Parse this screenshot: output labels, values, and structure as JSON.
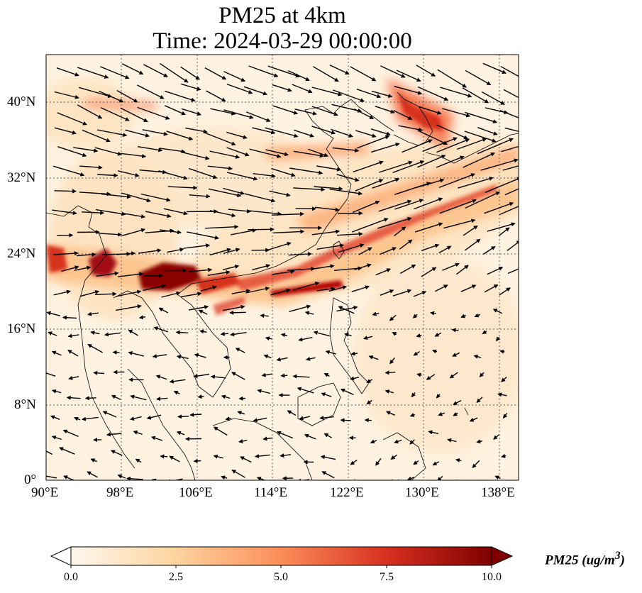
{
  "title": {
    "line1": "PM25 at 4km",
    "line2": "Time: 2024-03-29 00:00:00"
  },
  "map": {
    "lon_range": [
      90,
      140.2
    ],
    "lat_range": [
      0,
      45
    ],
    "gridlines": "dotted",
    "wind_vectors": "black arrows",
    "coastlines": "thin black"
  },
  "lat_ticks": [
    "0°",
    "8°N",
    "16°N",
    "24°N",
    "32°N",
    "40°N"
  ],
  "lon_ticks": [
    "90°E",
    "98°E",
    "106°E",
    "114°E",
    "122°E",
    "130°E",
    "138°E"
  ],
  "colorbar": {
    "label": "PM25 (ug/m",
    "label_sup": "3",
    "label_end": ")",
    "min": 0,
    "max": 10,
    "colormap": [
      "#fff7ec",
      "#fdd49e",
      "#fc8d59",
      "#d7301f",
      "#7f0000"
    ],
    "ticks": [
      "0.0",
      "2.5",
      "5.0",
      "7.5",
      "10.0"
    ],
    "extend": "both"
  }
}
